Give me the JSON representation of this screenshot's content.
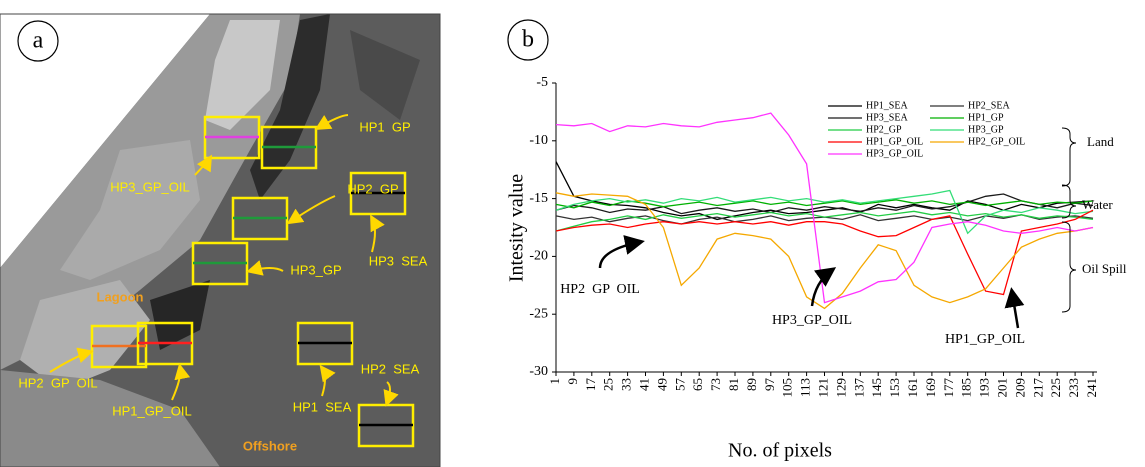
{
  "panel_a": {
    "label": "a",
    "regions": [
      "Lagoon",
      "Offshore"
    ],
    "boxes": [
      {
        "label": "HP3_GP_OIL",
        "color": "#e040e0"
      },
      {
        "label": "HP1  GP",
        "color": "#1f9a3a"
      },
      {
        "label": "HP3  SEA",
        "color": "#000000"
      },
      {
        "label": "HP2  GP",
        "color": "#1f9a3a"
      },
      {
        "label": "HP3_GP",
        "color": "#1f9a3a"
      },
      {
        "label": "HP2  GP  OIL",
        "color": "#f07020"
      },
      {
        "label": "HP1_GP_OIL",
        "color": "#ff2020"
      },
      {
        "label": "HP1  SEA",
        "color": "#000000"
      },
      {
        "label": "HP2  SEA",
        "color": "#000000"
      }
    ]
  },
  "chart_data": {
    "type": "line",
    "panel_label": "b",
    "x_label": "No. of pixels",
    "y_label": "Intesity value",
    "x": [
      1,
      9,
      17,
      25,
      33,
      41,
      49,
      57,
      65,
      73,
      81,
      89,
      97,
      105,
      113,
      121,
      129,
      137,
      145,
      153,
      161,
      169,
      177,
      185,
      193,
      201,
      209,
      217,
      225,
      233,
      241
    ],
    "xlim": [
      1,
      241
    ],
    "xticks": [
      1,
      9,
      17,
      25,
      33,
      41,
      49,
      57,
      65,
      73,
      81,
      89,
      97,
      105,
      113,
      121,
      129,
      137,
      145,
      153,
      161,
      169,
      177,
      185,
      193,
      201,
      209,
      217,
      225,
      233,
      241
    ],
    "ylim": [
      -30,
      -5
    ],
    "yticks": [
      -5,
      -10,
      -15,
      -20,
      -25,
      -30
    ],
    "grid": false,
    "series": [
      {
        "name": "HP1_SEA",
        "color": "#000000",
        "values": [
          -11.8,
          -14.8,
          -15.2,
          -15.5,
          -15.6,
          -15.8,
          -16.2,
          -16.5,
          -16.3,
          -16.8,
          -16.5,
          -16.2,
          -16.0,
          -16.3,
          -16.2,
          -16.0,
          -15.8,
          -16.2,
          -15.5,
          -15.8,
          -15.5,
          -15.8,
          -16.0,
          -15.2,
          -15.5,
          -16.0,
          -15.5,
          -15.8,
          -15.4,
          -15.3,
          -15.2
        ]
      },
      {
        "name": "HP2_SEA",
        "color": "#333333",
        "values": [
          -16.5,
          -16.8,
          -16.6,
          -17.0,
          -16.7,
          -16.5,
          -16.9,
          -17.2,
          -16.8,
          -16.6,
          -17.0,
          -16.8,
          -16.5,
          -16.9,
          -16.7,
          -16.6,
          -16.8,
          -16.4,
          -16.9,
          -16.7,
          -16.5,
          -16.8,
          -16.6,
          -16.9,
          -16.5,
          -16.7,
          -16.4,
          -16.8,
          -16.6,
          -16.5,
          -16.7
        ]
      },
      {
        "name": "HP3_SEA",
        "color": "#1a1a1a",
        "values": [
          -16.0,
          -15.6,
          -15.8,
          -16.2,
          -15.9,
          -16.0,
          -15.7,
          -16.3,
          -16.0,
          -15.8,
          -16.1,
          -15.9,
          -16.2,
          -15.8,
          -16.0,
          -15.7,
          -15.9,
          -16.1,
          -15.8,
          -16.0,
          -15.6,
          -15.9,
          -15.7,
          -15.3,
          -14.8,
          -14.6,
          -15.2,
          -15.5,
          -15.8,
          -15.4,
          -15.6
        ]
      },
      {
        "name": "HP1_GP",
        "color": "#00b000",
        "values": [
          -15.5,
          -15.8,
          -15.3,
          -15.6,
          -15.2,
          -15.4,
          -15.7,
          -15.5,
          -15.3,
          -15.6,
          -15.4,
          -15.2,
          -15.5,
          -15.3,
          -15.6,
          -15.4,
          -15.2,
          -15.5,
          -15.3,
          -15.1,
          -15.4,
          -15.2,
          -15.5,
          -15.3,
          -15.6,
          -15.4,
          -15.2,
          -15.5,
          -15.3,
          -15.4,
          -15.2
        ]
      },
      {
        "name": "HP2_GP",
        "color": "#22cc44",
        "values": [
          -17.8,
          -17.4,
          -17.0,
          -16.8,
          -16.5,
          -16.8,
          -16.4,
          -16.7,
          -16.5,
          -16.3,
          -16.6,
          -16.4,
          -16.2,
          -16.5,
          -16.3,
          -16.6,
          -16.4,
          -16.2,
          -16.5,
          -16.3,
          -16.1,
          -16.4,
          -16.2,
          -16.5,
          -16.3,
          -16.6,
          -16.4,
          -16.7,
          -16.5,
          -16.6,
          -16.8
        ]
      },
      {
        "name": "HP3_GP",
        "color": "#33dd77",
        "values": [
          -16.0,
          -15.5,
          -15.2,
          -15.0,
          -15.3,
          -15.1,
          -15.4,
          -15.0,
          -15.2,
          -14.9,
          -15.3,
          -15.1,
          -14.9,
          -15.2,
          -15.0,
          -15.3,
          -15.1,
          -15.4,
          -15.2,
          -15.0,
          -14.8,
          -14.6,
          -14.3,
          -18.0,
          -16.5,
          -16.0,
          -16.2,
          -15.8,
          -16.0,
          -16.3,
          -16.1
        ]
      },
      {
        "name": "HP1_GP_OIL",
        "color": "#ff0000",
        "values": [
          -17.8,
          -17.5,
          -17.3,
          -17.2,
          -17.5,
          -17.2,
          -17.0,
          -17.2,
          -17.0,
          -17.2,
          -17.0,
          -17.2,
          -17.0,
          -17.3,
          -17.0,
          -17.0,
          -17.2,
          -17.8,
          -18.3,
          -18.2,
          -17.5,
          -16.8,
          -16.5,
          -19.8,
          -23.0,
          -23.3,
          -17.8,
          -17.5,
          -17.2,
          -16.8,
          -16.0
        ]
      },
      {
        "name": "HP2_GP_OIL",
        "color": "#f5a800",
        "values": [
          -14.5,
          -14.8,
          -14.6,
          -14.7,
          -14.8,
          -15.5,
          -17.5,
          -22.5,
          -21.0,
          -18.5,
          -18.0,
          -18.2,
          -18.5,
          -20.0,
          -23.5,
          -24.5,
          -23.2,
          -21.0,
          -19.0,
          -19.5,
          -22.5,
          -23.5,
          -24.0,
          -23.5,
          -22.8,
          -21.0,
          -19.2,
          -18.5,
          -18.0,
          -17.8,
          -17.5
        ]
      },
      {
        "name": "HP3_GP_OIL",
        "color": "#ff33ff",
        "values": [
          -8.6,
          -8.7,
          -8.5,
          -9.2,
          -8.7,
          -8.8,
          -8.5,
          -8.7,
          -8.8,
          -8.4,
          -8.2,
          -8.0,
          -7.6,
          -9.5,
          -12.0,
          -24.0,
          -23.5,
          -23.0,
          -22.2,
          -22.0,
          -20.5,
          -17.5,
          -17.2,
          -17.0,
          -17.3,
          -17.8,
          -18.0,
          -17.8,
          -17.5,
          -17.8,
          -17.5
        ]
      }
    ],
    "annotations": [
      "HP2  GP  OIL",
      "HP3_GP_OIL",
      "HP1_GP_OIL"
    ],
    "brace_labels": [
      "Land",
      "Water",
      "Oil Spill"
    ]
  }
}
